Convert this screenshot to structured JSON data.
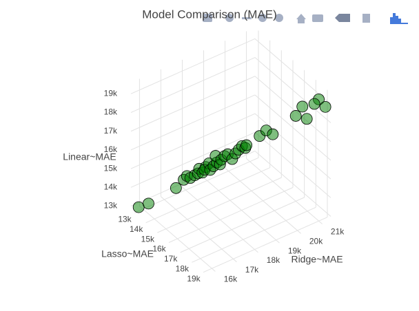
{
  "chart_data": {
    "type": "scatter3d",
    "title": "Model Comparison (MAE)",
    "x_label": "Ridge~MAE",
    "y_label": "Lasso~MAE",
    "z_label": "Linear~MAE",
    "color": "#008000",
    "opacity": 0.5,
    "grid": true,
    "xlim": [
      15600,
      21400
    ],
    "ylim": [
      12700,
      19300
    ],
    "zlim": [
      12800,
      19600
    ],
    "xticks": [
      {
        "value": 16000,
        "label": "16k"
      },
      {
        "value": 17000,
        "label": "17k"
      },
      {
        "value": 18000,
        "label": "18k"
      },
      {
        "value": 19000,
        "label": "19k"
      },
      {
        "value": 20000,
        "label": "20k"
      },
      {
        "value": 21000,
        "label": "21k"
      }
    ],
    "yticks": [
      {
        "value": 13000,
        "label": "13k"
      },
      {
        "value": 14000,
        "label": "14k"
      },
      {
        "value": 15000,
        "label": "15k"
      },
      {
        "value": 16000,
        "label": "16k"
      },
      {
        "value": 17000,
        "label": "17k"
      },
      {
        "value": 18000,
        "label": "18k"
      },
      {
        "value": 19000,
        "label": "19k"
      }
    ],
    "zticks": [
      {
        "value": 13000,
        "label": "13k"
      },
      {
        "value": 14000,
        "label": "14k"
      },
      {
        "value": 15000,
        "label": "15k"
      },
      {
        "value": 16000,
        "label": "16k"
      },
      {
        "value": 17000,
        "label": "17k"
      },
      {
        "value": 18000,
        "label": "18k"
      },
      {
        "value": 19000,
        "label": "19k"
      }
    ],
    "x": [
      15800,
      16100,
      16900,
      17100,
      17200,
      17300,
      17400,
      17500,
      17500,
      17600,
      17700,
      17700,
      17800,
      17800,
      17900,
      18000,
      18000,
      18100,
      18100,
      18200,
      18300,
      18400,
      18500,
      18600,
      18700,
      18800,
      18800,
      19200,
      19400,
      19600,
      20300,
      20500,
      20600,
      21000,
      21200,
      20900
    ],
    "y": [
      13000,
      13300,
      14200,
      14500,
      14600,
      14700,
      14900,
      15000,
      15100,
      15200,
      15300,
      15200,
      15400,
      15500,
      15600,
      15700,
      15600,
      15800,
      15900,
      16000,
      16100,
      16300,
      16400,
      16500,
      16600,
      16700,
      16800,
      17200,
      17400,
      17600,
      18300,
      18500,
      18700,
      19000,
      19200,
      18800
    ],
    "z": [
      13000,
      13200,
      14100,
      14600,
      14800,
      14700,
      14900,
      15000,
      15300,
      15100,
      15400,
      15200,
      15600,
      15300,
      15500,
      15700,
      16000,
      15600,
      15900,
      16100,
      16200,
      16000,
      16300,
      16500,
      16700,
      16600,
      16800,
      17300,
      17600,
      17400,
      18400,
      18900,
      18300,
      19300,
      18900,
      19000
    ]
  }
}
